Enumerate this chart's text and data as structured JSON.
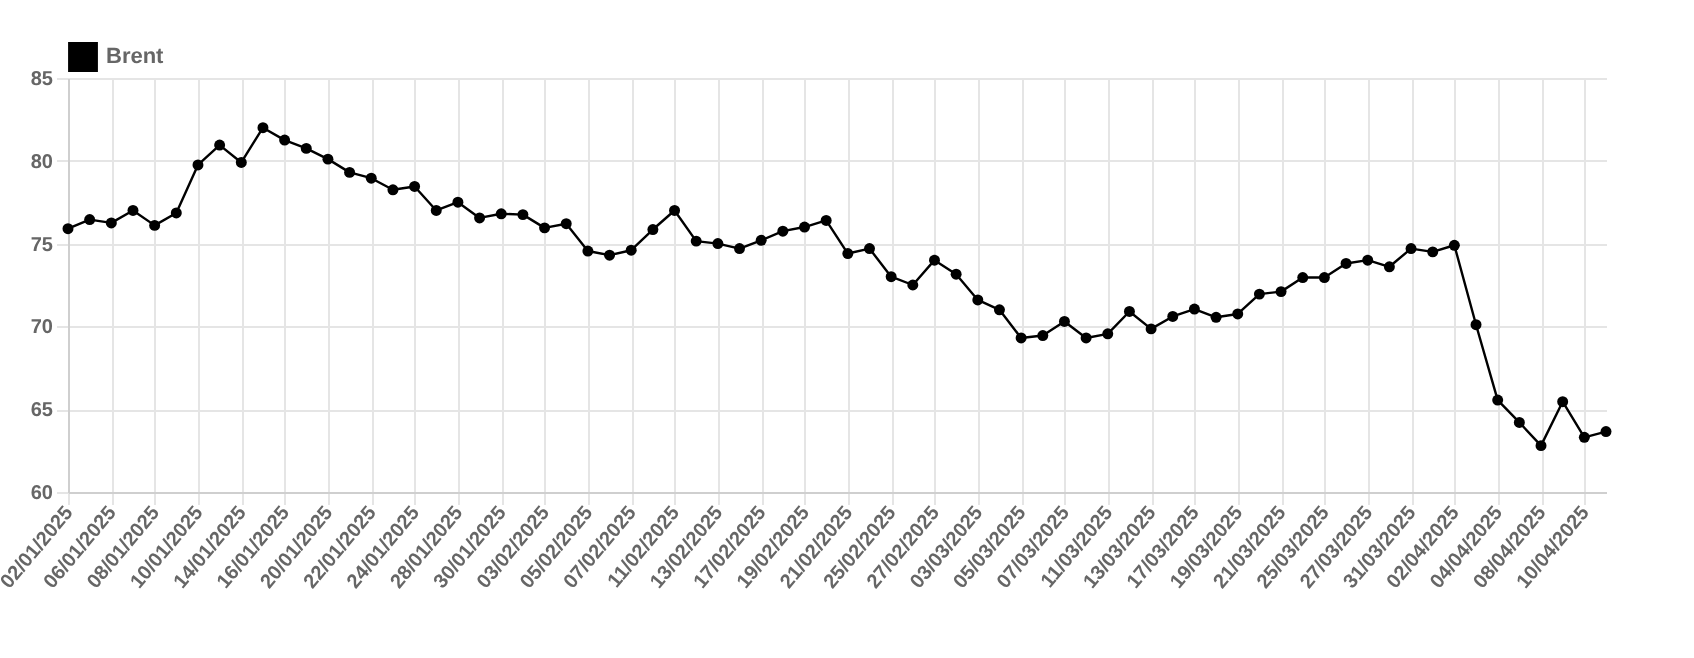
{
  "chart_data": {
    "type": "line",
    "categories": [
      "02/01/2025",
      null,
      "06/01/2025",
      null,
      "08/01/2025",
      null,
      "10/01/2025",
      null,
      "14/01/2025",
      null,
      "16/01/2025",
      null,
      "20/01/2025",
      null,
      "22/01/2025",
      null,
      "24/01/2025",
      null,
      "28/01/2025",
      null,
      "30/01/2025",
      null,
      "03/02/2025",
      null,
      "05/02/2025",
      null,
      "07/02/2025",
      null,
      "11/02/2025",
      null,
      "13/02/2025",
      null,
      "17/02/2025",
      null,
      "19/02/2025",
      null,
      "21/02/2025",
      null,
      "25/02/2025",
      null,
      "27/02/2025",
      null,
      "03/03/2025",
      null,
      "05/03/2025",
      null,
      "07/03/2025",
      null,
      "11/03/2025",
      null,
      "13/03/2025",
      null,
      "17/03/2025",
      null,
      "19/03/2025",
      null,
      "21/03/2025",
      null,
      "25/03/2025",
      null,
      "27/03/2025",
      null,
      "31/03/2025",
      null,
      "02/04/2025",
      null,
      "04/04/2025",
      null,
      "08/04/2025",
      null,
      "10/04/2025",
      null
    ],
    "series": [
      {
        "name": "Brent",
        "color": "#000000",
        "values": [
          75.9,
          76.45,
          76.25,
          77.0,
          76.1,
          76.85,
          79.75,
          80.95,
          79.9,
          82.0,
          81.25,
          80.75,
          80.1,
          79.3,
          78.95,
          78.25,
          78.45,
          77.0,
          77.5,
          76.55,
          76.8,
          76.75,
          75.95,
          76.2,
          74.55,
          74.3,
          74.6,
          75.85,
          77.0,
          75.15,
          75.0,
          74.7,
          75.2,
          75.75,
          76.0,
          76.4,
          74.4,
          74.7,
          73.0,
          72.5,
          74.0,
          73.15,
          71.6,
          71.0,
          69.3,
          69.45,
          70.3,
          69.3,
          69.55,
          70.9,
          69.85,
          70.6,
          71.05,
          70.55,
          70.75,
          71.95,
          72.1,
          72.95,
          72.95,
          73.8,
          74.0,
          73.6,
          74.7,
          74.5,
          74.9,
          70.1,
          65.55,
          64.2,
          62.8,
          65.45,
          63.3,
          63.65
        ]
      }
    ],
    "ylim": [
      60,
      85
    ],
    "yticks": [
      60,
      65,
      70,
      75,
      80,
      85
    ],
    "grid": true,
    "legend": "top",
    "marker": "circle",
    "line_style": "solid"
  }
}
